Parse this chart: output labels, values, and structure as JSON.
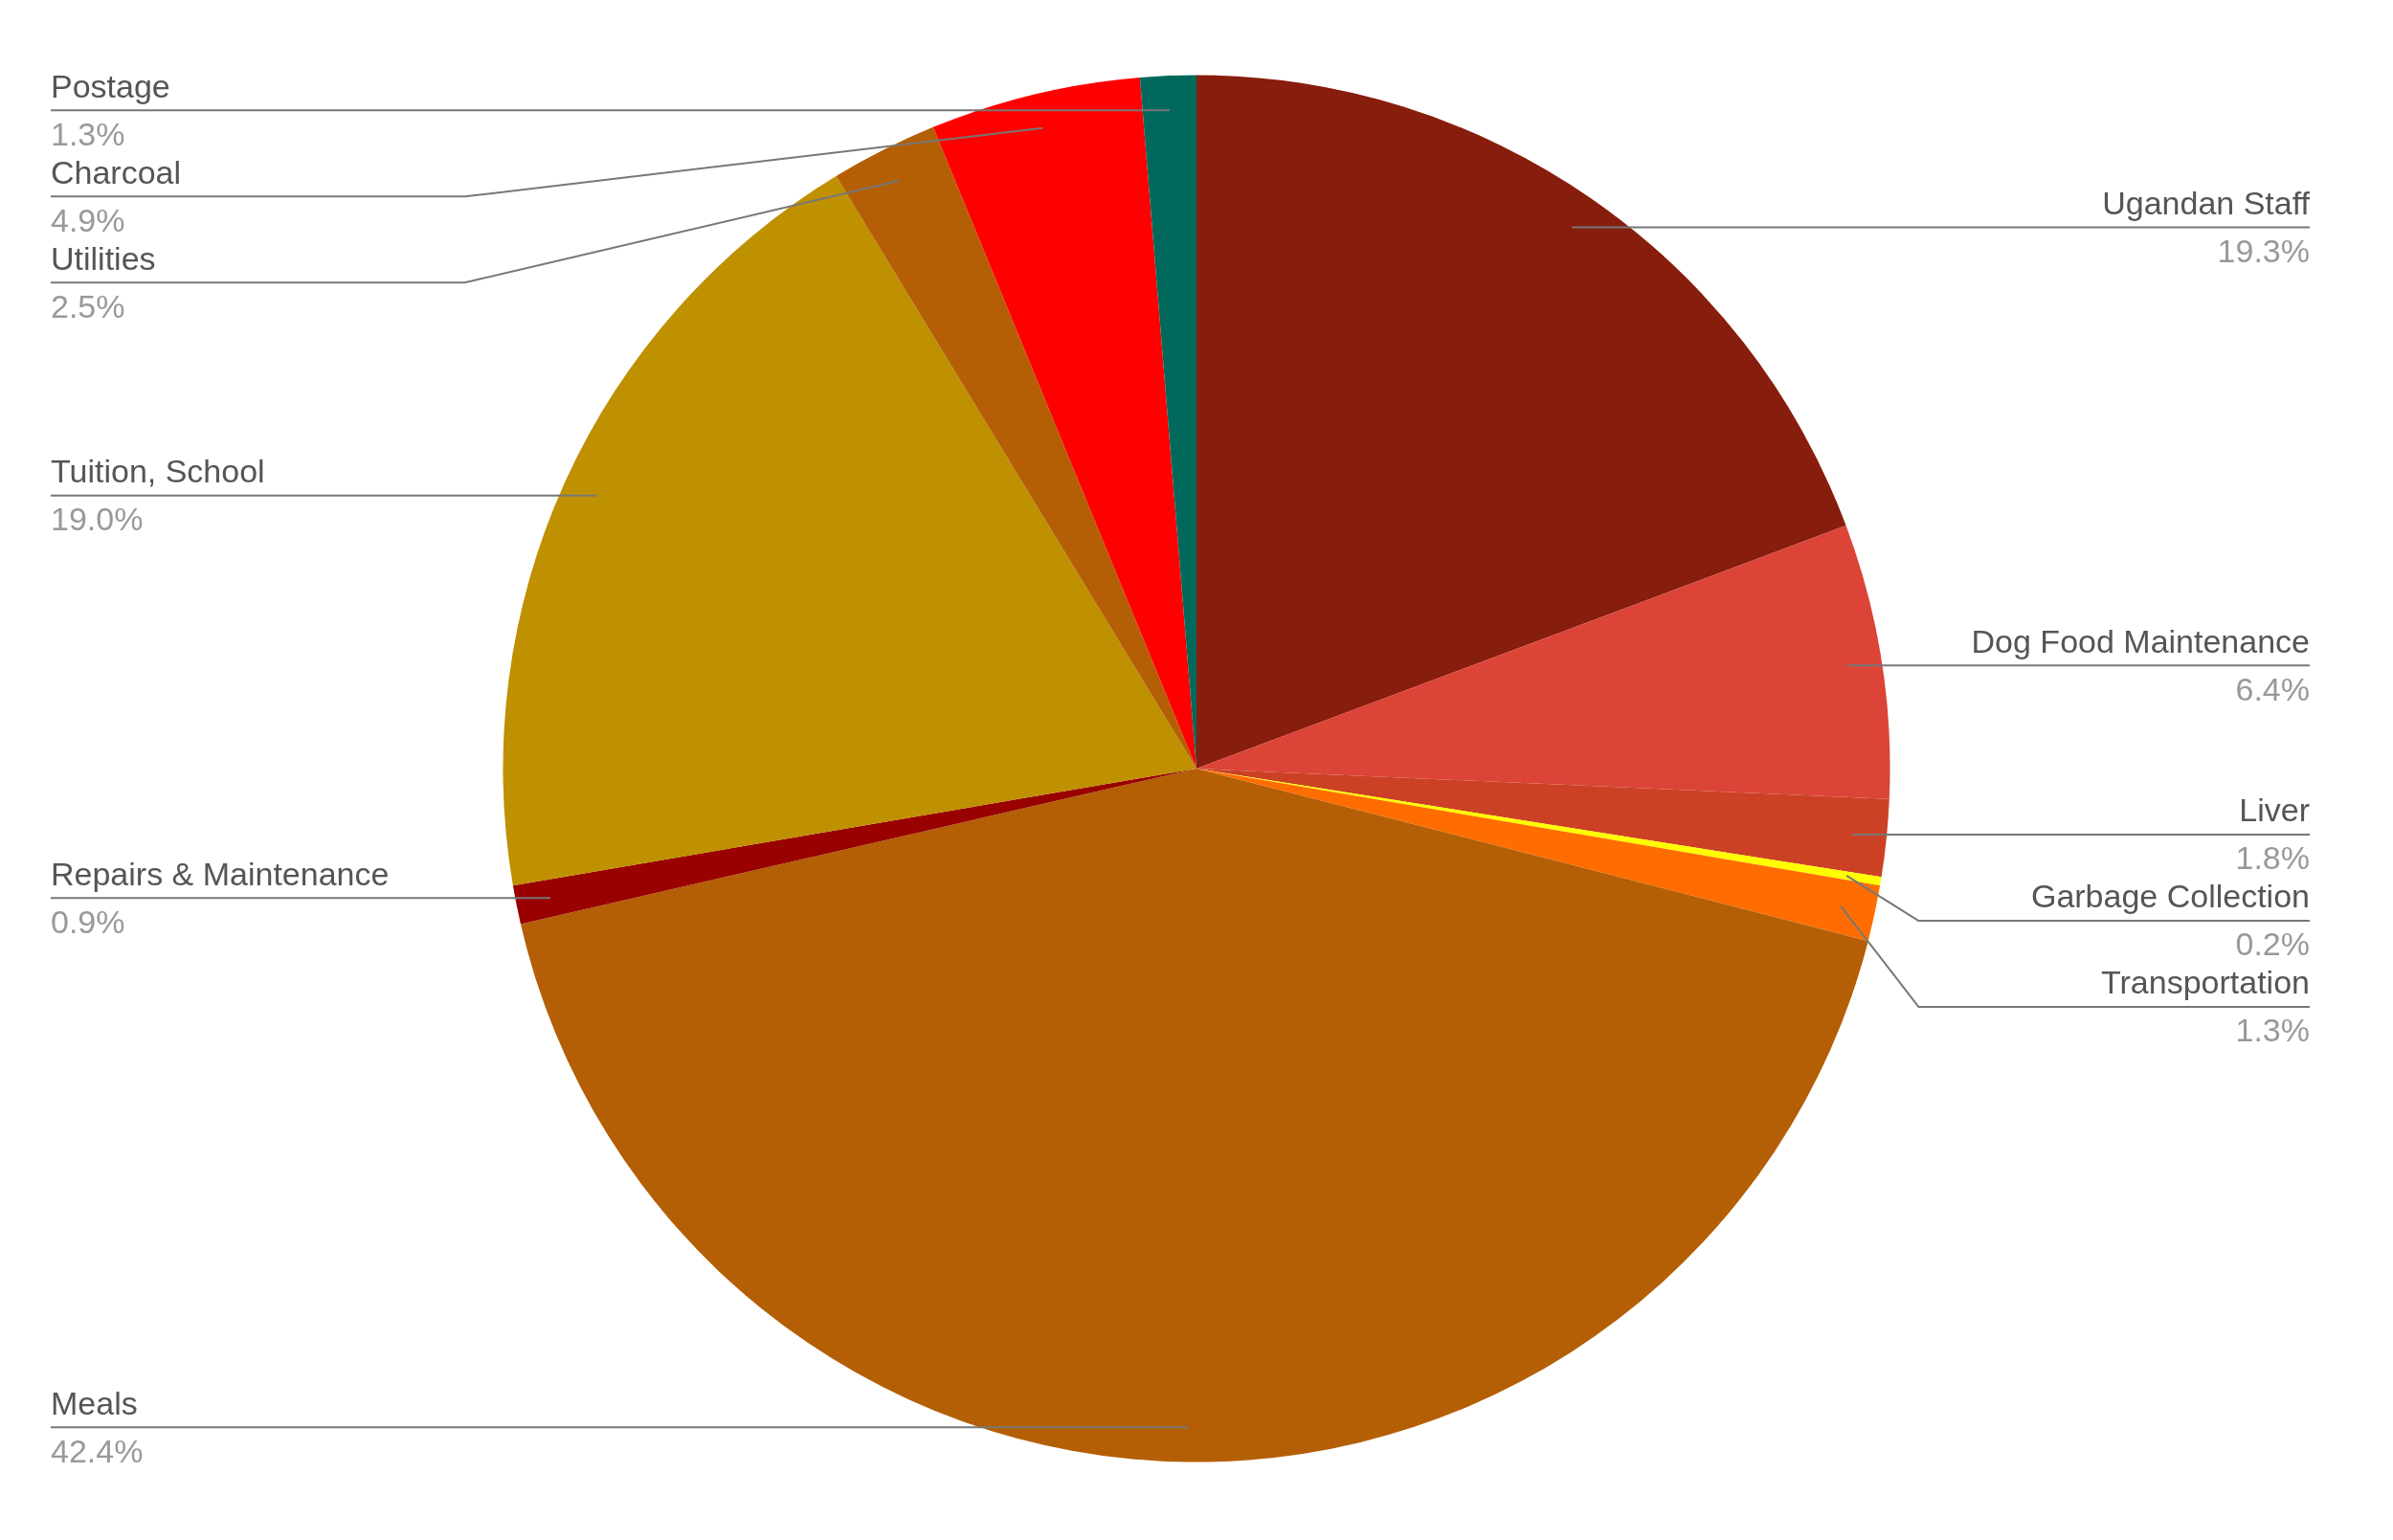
{
  "chart_data": {
    "type": "pie",
    "categories": [
      "Ugandan Staff",
      "Dog Food Maintenance",
      "Liver",
      "Garbage Collection",
      "Transportation",
      "Meals",
      "Repairs & Maintenance",
      "Tuition, School",
      "Utilities",
      "Charcoal",
      "Postage"
    ],
    "values": [
      19.3,
      6.4,
      1.8,
      0.2,
      1.3,
      42.4,
      0.9,
      19.0,
      2.5,
      4.9,
      1.3
    ],
    "value_labels": [
      "19.3%",
      "6.4%",
      "1.8%",
      "0.2%",
      "1.3%",
      "42.4%",
      "0.9%",
      "19.0%",
      "2.5%",
      "4.9%",
      "1.3%"
    ],
    "colors": [
      "#871d0c",
      "#db4437",
      "#cc4125",
      "#ffff00",
      "#ff6d01",
      "#b45f06",
      "#990000",
      "#bf9000",
      "#b45f06",
      "#ff0000",
      "#00695c"
    ],
    "legend": false
  }
}
